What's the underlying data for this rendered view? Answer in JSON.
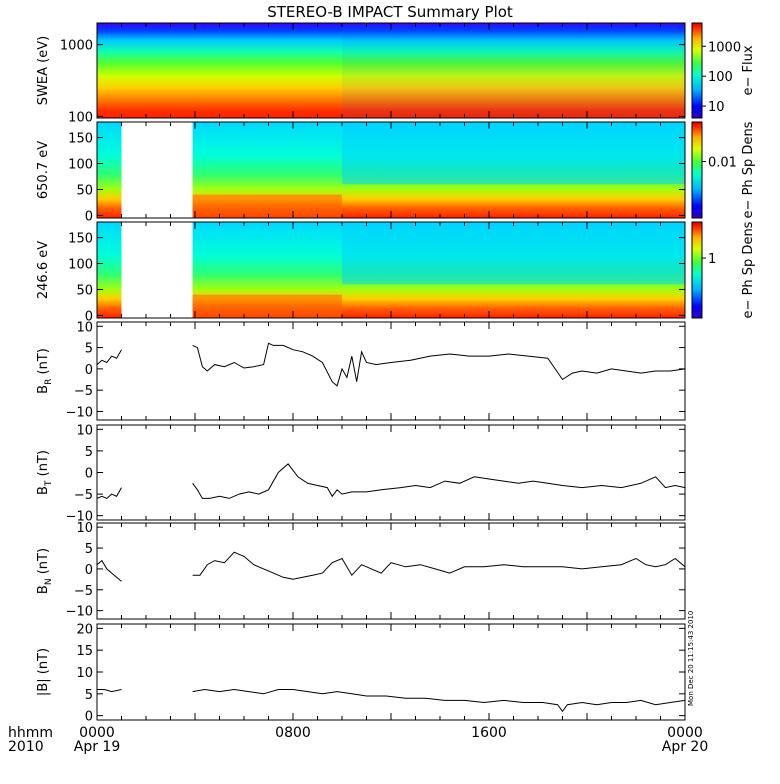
{
  "title": "STEREO-B IMPACT Summary Plot",
  "timestamp": "Mon Dec 20 11:15:43 2010",
  "x_axis": {
    "corner_top": "hhmm",
    "corner_bottom": "2010",
    "ticks": [
      {
        "hour": 0,
        "label": "0000",
        "sub": "Apr 19"
      },
      {
        "hour": 8,
        "label": "0800",
        "sub": ""
      },
      {
        "hour": 16,
        "label": "1600",
        "sub": ""
      },
      {
        "hour": 24,
        "label": "0000",
        "sub": "Apr 20"
      }
    ]
  },
  "chart_data": [
    {
      "id": "swea",
      "type": "heatmap",
      "ylabel": "SWEA (eV)",
      "yscale": "log",
      "ylim": [
        95,
        2000
      ],
      "yticks": [
        100,
        1000
      ],
      "ytick_labels": [
        "100",
        "1000"
      ],
      "colorbar": {
        "label": "e− Flux",
        "scale": "log",
        "range": [
          4,
          6000
        ],
        "ticks": [
          10,
          100,
          1000
        ],
        "tick_labels": [
          "10",
          "100",
          "1000"
        ]
      },
      "data_gaps_hours": []
    },
    {
      "id": "pad650",
      "type": "heatmap",
      "ylabel": "650.7 eV",
      "ylim": [
        -5,
        180
      ],
      "yticks": [
        0,
        50,
        100,
        150
      ],
      "ytick_labels": [
        "0",
        "50",
        "100",
        "150"
      ],
      "colorbar": {
        "label": "e− Ph Sp Dens",
        "scale": "log",
        "range": [
          0.001,
          0.05
        ],
        "ticks": [
          0.01
        ],
        "tick_labels": [
          "0.01"
        ]
      },
      "data_gaps_hours": [
        [
          1.0,
          3.9
        ]
      ]
    },
    {
      "id": "pad246",
      "type": "heatmap",
      "ylabel": "246.6 eV",
      "ylim": [
        -5,
        180
      ],
      "yticks": [
        0,
        50,
        100,
        150
      ],
      "ytick_labels": [
        "0",
        "50",
        "100",
        "150"
      ],
      "colorbar": {
        "label": "e− Ph Sp Dens",
        "scale": "log",
        "range": [
          0.1,
          4
        ],
        "ticks": [
          1
        ],
        "tick_labels": [
          "1"
        ]
      },
      "data_gaps_hours": [
        [
          1.0,
          3.9
        ]
      ]
    },
    {
      "id": "br",
      "type": "line",
      "ylabel": "B",
      "ylabel_sub": "R",
      "ylabel_unit": " (nT)",
      "ylim": [
        -12,
        11
      ],
      "yticks": [
        -10,
        -5,
        0,
        5,
        10
      ],
      "ytick_labels": [
        "−10",
        "−5",
        "0",
        "5",
        "10"
      ],
      "segments": [
        {
          "x": [
            0,
            0.2,
            0.4,
            0.6,
            0.8,
            1.0
          ],
          "y": [
            1,
            2,
            1.5,
            3,
            2.5,
            4.5
          ]
        },
        {
          "x": [
            3.9,
            4.1,
            4.3,
            4.5,
            4.8,
            5.2,
            5.6,
            6.0,
            6.4,
            6.8,
            7.0,
            7.2,
            7.6,
            8.0,
            8.4,
            8.8,
            9.2,
            9.6,
            9.8,
            10.0,
            10.2,
            10.4,
            10.6,
            10.8,
            11.0,
            11.4,
            12.0,
            12.8,
            13.6,
            14.4,
            15.2,
            16.0,
            16.8,
            17.6,
            18.4,
            19.0,
            19.4,
            19.8,
            20.4,
            21.0,
            21.6,
            22.2,
            22.8,
            23.4,
            24.0
          ],
          "y": [
            5.5,
            5,
            0.5,
            -0.5,
            1,
            0.5,
            1.5,
            0.2,
            0.5,
            1,
            6,
            5.5,
            5.5,
            4.5,
            4,
            3,
            1.5,
            -3,
            -4,
            0,
            -2,
            3,
            -3,
            4,
            1.5,
            1,
            1.5,
            2,
            3,
            3.5,
            3,
            3,
            3.5,
            3,
            2.5,
            -2.5,
            -1,
            -0.5,
            -1,
            0,
            -0.5,
            -1,
            -0.5,
            -0.5,
            0
          ]
        }
      ]
    },
    {
      "id": "bt",
      "type": "line",
      "ylabel": "B",
      "ylabel_sub": "T",
      "ylabel_unit": " (nT)",
      "ylim": [
        -11,
        11
      ],
      "yticks": [
        -10,
        -5,
        0,
        5,
        10
      ],
      "ytick_labels": [
        "−10",
        "−5",
        "0",
        "5",
        "10"
      ],
      "segments": [
        {
          "x": [
            0,
            0.2,
            0.4,
            0.6,
            0.8,
            1.0
          ],
          "y": [
            -6,
            -5.5,
            -6,
            -5,
            -5.5,
            -3.5
          ]
        },
        {
          "x": [
            3.9,
            4.1,
            4.3,
            4.6,
            5.0,
            5.4,
            5.8,
            6.2,
            6.6,
            7.0,
            7.4,
            7.8,
            8.0,
            8.2,
            8.6,
            9.0,
            9.4,
            9.6,
            9.8,
            10.0,
            10.4,
            11.0,
            11.6,
            12.4,
            13.0,
            13.6,
            14.2,
            14.8,
            15.4,
            16.0,
            16.6,
            17.2,
            17.8,
            18.4,
            19.0,
            19.8,
            20.6,
            21.4,
            22.2,
            22.8,
            23.2,
            23.6,
            24.0
          ],
          "y": [
            -2.5,
            -4,
            -6,
            -6,
            -5.5,
            -6,
            -5,
            -4.5,
            -5,
            -4,
            0,
            2,
            0.5,
            -1,
            -2.5,
            -3,
            -3.5,
            -5.5,
            -4,
            -5,
            -4.5,
            -4.5,
            -4,
            -3.5,
            -3,
            -3.5,
            -2,
            -2.5,
            -1,
            -1.5,
            -2,
            -2.5,
            -2,
            -2.5,
            -3,
            -3.5,
            -3,
            -3.5,
            -2.5,
            -1,
            -3.5,
            -3,
            -3.5
          ]
        }
      ]
    },
    {
      "id": "bn",
      "type": "line",
      "ylabel": "B",
      "ylabel_sub": "N",
      "ylabel_unit": " (nT)",
      "ylim": [
        -12,
        11
      ],
      "yticks": [
        -10,
        -5,
        0,
        5,
        10
      ],
      "ytick_labels": [
        "−10",
        "−5",
        "0",
        "5",
        "10"
      ],
      "segments": [
        {
          "x": [
            0,
            0.2,
            0.4,
            0.6,
            0.8,
            1.0
          ],
          "y": [
            1,
            2,
            0,
            -1,
            -2,
            -3
          ]
        },
        {
          "x": [
            3.9,
            4.2,
            4.5,
            4.8,
            5.2,
            5.6,
            6.0,
            6.4,
            6.8,
            7.2,
            7.6,
            8.0,
            8.4,
            8.8,
            9.2,
            9.6,
            10.0,
            10.4,
            10.8,
            11.2,
            11.6,
            12.0,
            12.6,
            13.2,
            13.8,
            14.4,
            15.0,
            15.8,
            16.6,
            17.4,
            18.2,
            19.0,
            19.8,
            20.6,
            21.4,
            22.0,
            22.4,
            22.8,
            23.2,
            23.6,
            24.0
          ],
          "y": [
            -1.5,
            -1.5,
            1,
            2,
            1.5,
            4,
            3,
            1,
            0,
            -1,
            -2,
            -2.5,
            -2,
            -1.5,
            -1,
            1.5,
            2.5,
            -1.5,
            1,
            0,
            -1,
            1.5,
            0.5,
            1,
            0,
            -1,
            0.5,
            0.5,
            1,
            0.5,
            0.5,
            0.5,
            0,
            0.5,
            1,
            2.5,
            1,
            0.5,
            1,
            2.5,
            0.5
          ]
        }
      ]
    },
    {
      "id": "btot",
      "type": "line",
      "ylabel": "|B| (nT)",
      "ylim": [
        -1,
        21
      ],
      "yticks": [
        0,
        5,
        10,
        15,
        20
      ],
      "ytick_labels": [
        "0",
        "5",
        "10",
        "15",
        "20"
      ],
      "segments": [
        {
          "x": [
            0,
            0.3,
            0.6,
            1.0
          ],
          "y": [
            6,
            6,
            5.5,
            6
          ]
        },
        {
          "x": [
            3.9,
            4.4,
            5.0,
            5.6,
            6.2,
            6.8,
            7.4,
            8.0,
            8.6,
            9.2,
            9.8,
            10.4,
            11.0,
            11.8,
            12.6,
            13.4,
            14.2,
            15.0,
            15.8,
            16.6,
            17.4,
            18.2,
            18.8,
            19.0,
            19.2,
            19.8,
            20.4,
            21.0,
            21.6,
            22.2,
            22.8,
            23.4,
            24.0
          ],
          "y": [
            5.5,
            6,
            5.5,
            6,
            5.5,
            5,
            6,
            6,
            5.5,
            5,
            5.5,
            5,
            4.5,
            4.5,
            4,
            4,
            3.5,
            3.5,
            3,
            3.5,
            3,
            3,
            2.5,
            1,
            2.5,
            3,
            2.5,
            3,
            3,
            3.5,
            2.5,
            3,
            3.5
          ]
        }
      ]
    }
  ]
}
